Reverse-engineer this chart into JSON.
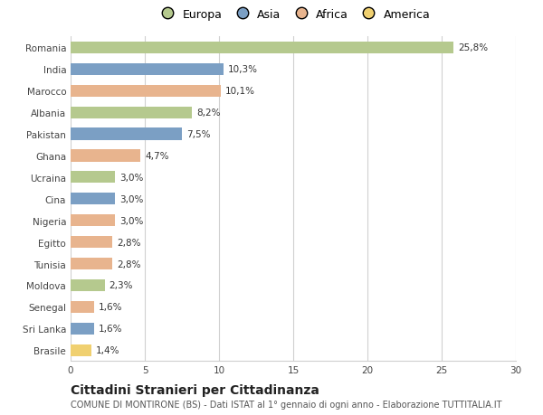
{
  "categories": [
    "Romania",
    "India",
    "Marocco",
    "Albania",
    "Pakistan",
    "Ghana",
    "Ucraina",
    "Cina",
    "Nigeria",
    "Egitto",
    "Tunisia",
    "Moldova",
    "Senegal",
    "Sri Lanka",
    "Brasile"
  ],
  "values": [
    25.8,
    10.3,
    10.1,
    8.2,
    7.5,
    4.7,
    3.0,
    3.0,
    3.0,
    2.8,
    2.8,
    2.3,
    1.6,
    1.6,
    1.4
  ],
  "labels": [
    "25,8%",
    "10,3%",
    "10,1%",
    "8,2%",
    "7,5%",
    "4,7%",
    "3,0%",
    "3,0%",
    "3,0%",
    "2,8%",
    "2,8%",
    "2,3%",
    "1,6%",
    "1,6%",
    "1,4%"
  ],
  "continent": [
    "Europa",
    "Asia",
    "Africa",
    "Europa",
    "Asia",
    "Africa",
    "Europa",
    "Asia",
    "Africa",
    "Africa",
    "Africa",
    "Europa",
    "Africa",
    "Asia",
    "America"
  ],
  "colors": {
    "Europa": "#b5c98e",
    "Asia": "#7b9fc4",
    "Africa": "#e8b48e",
    "America": "#f0d070"
  },
  "title": "Cittadini Stranieri per Cittadinanza",
  "subtitle": "COMUNE DI MONTIRONE (BS) - Dati ISTAT al 1° gennaio di ogni anno - Elaborazione TUTTITALIA.IT",
  "xlim": [
    0,
    30
  ],
  "xticks": [
    0,
    5,
    10,
    15,
    20,
    25,
    30
  ],
  "background_color": "#ffffff",
  "grid_color": "#d0d0d0",
  "bar_height": 0.55,
  "label_fontsize": 7.5,
  "tick_fontsize": 7.5,
  "title_fontsize": 10,
  "subtitle_fontsize": 7
}
